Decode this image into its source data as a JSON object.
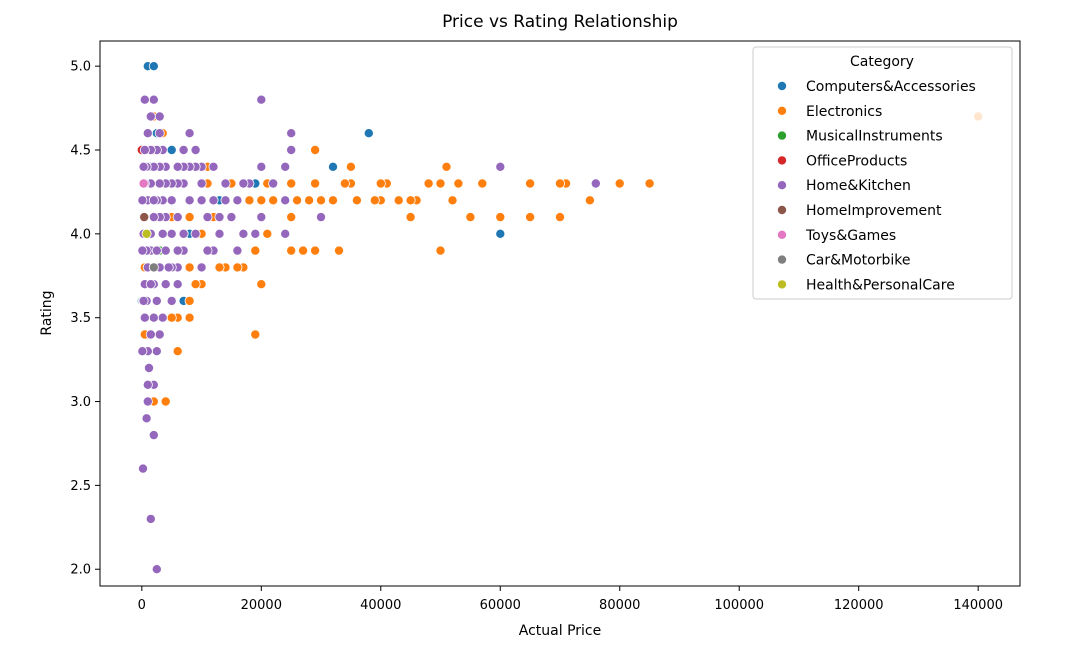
{
  "chart_data": {
    "type": "scatter",
    "title": "Price vs Rating Relationship",
    "xlabel": "Actual Price",
    "ylabel": "Rating",
    "xlim": [
      -7000,
      147000
    ],
    "ylim": [
      1.9,
      5.15
    ],
    "xticks": [
      0,
      20000,
      40000,
      60000,
      80000,
      100000,
      120000,
      140000
    ],
    "yticks": [
      2.0,
      2.5,
      3.0,
      3.5,
      4.0,
      4.5,
      5.0
    ],
    "xtick_labels": [
      "0",
      "20000",
      "40000",
      "60000",
      "80000",
      "100000",
      "120000",
      "140000"
    ],
    "ytick_labels": [
      "2.0",
      "2.5",
      "3.0",
      "3.5",
      "4.0",
      "4.5",
      "5.0"
    ],
    "legend": {
      "title": "Category",
      "position": "top-right",
      "entries": [
        {
          "name": "Computers&Accessories",
          "color": "#1f77b4"
        },
        {
          "name": "Electronics",
          "color": "#ff7f0e"
        },
        {
          "name": "MusicalInstruments",
          "color": "#2ca02c"
        },
        {
          "name": "OfficeProducts",
          "color": "#d62728"
        },
        {
          "name": "Home&Kitchen",
          "color": "#9467bd"
        },
        {
          "name": "HomeImprovement",
          "color": "#8c564b"
        },
        {
          "name": "Toys&Games",
          "color": "#e377c2"
        },
        {
          "name": "Car&Motorbike",
          "color": "#7f7f7f"
        },
        {
          "name": "Health&PersonalCare",
          "color": "#bcbd22"
        }
      ]
    },
    "series": [
      {
        "name": "Computers&Accessories",
        "points": [
          [
            1000,
            5.0
          ],
          [
            2000,
            5.0
          ],
          [
            38000,
            4.6
          ],
          [
            32000,
            4.4
          ],
          [
            60000,
            4.0
          ],
          [
            19000,
            4.3
          ],
          [
            5000,
            4.5
          ],
          [
            6000,
            4.4
          ],
          [
            7000,
            3.6
          ],
          [
            13000,
            4.2
          ],
          [
            3000,
            4.1
          ],
          [
            500,
            3.8
          ],
          [
            0,
            3.6
          ],
          [
            2500,
            4.6
          ],
          [
            1500,
            4.4
          ],
          [
            4000,
            3.9
          ],
          [
            8000,
            4.0
          ],
          [
            300,
            4.2
          ],
          [
            700,
            4.3
          ],
          [
            1200,
            4.0
          ]
        ]
      },
      {
        "name": "Electronics",
        "points": [
          [
            140000,
            4.7
          ],
          [
            85000,
            4.3
          ],
          [
            80000,
            4.3
          ],
          [
            76000,
            4.3
          ],
          [
            75000,
            4.2
          ],
          [
            71000,
            4.3
          ],
          [
            70000,
            4.3
          ],
          [
            70000,
            4.1
          ],
          [
            65000,
            4.3
          ],
          [
            65000,
            4.1
          ],
          [
            60000,
            4.1
          ],
          [
            60000,
            4.4
          ],
          [
            57000,
            4.3
          ],
          [
            55000,
            4.1
          ],
          [
            53000,
            4.3
          ],
          [
            52000,
            4.2
          ],
          [
            51000,
            4.4
          ],
          [
            50000,
            3.9
          ],
          [
            50000,
            4.3
          ],
          [
            48000,
            4.3
          ],
          [
            46000,
            4.2
          ],
          [
            45000,
            4.2
          ],
          [
            45000,
            4.1
          ],
          [
            43000,
            4.2
          ],
          [
            41000,
            4.3
          ],
          [
            40000,
            4.3
          ],
          [
            40000,
            4.2
          ],
          [
            39000,
            4.2
          ],
          [
            36000,
            4.2
          ],
          [
            35000,
            4.4
          ],
          [
            35000,
            4.3
          ],
          [
            34000,
            4.3
          ],
          [
            33000,
            3.9
          ],
          [
            32000,
            4.2
          ],
          [
            30000,
            4.2
          ],
          [
            29000,
            4.3
          ],
          [
            29000,
            4.5
          ],
          [
            29000,
            3.9
          ],
          [
            28000,
            4.2
          ],
          [
            27000,
            3.9
          ],
          [
            26000,
            4.2
          ],
          [
            25000,
            4.1
          ],
          [
            25000,
            4.3
          ],
          [
            25000,
            3.9
          ],
          [
            22000,
            4.2
          ],
          [
            21000,
            4.0
          ],
          [
            21000,
            4.3
          ],
          [
            20000,
            3.7
          ],
          [
            20000,
            4.2
          ],
          [
            20000,
            4.1
          ],
          [
            19000,
            3.4
          ],
          [
            19000,
            3.9
          ],
          [
            18000,
            4.2
          ],
          [
            17000,
            3.8
          ],
          [
            16000,
            3.8
          ],
          [
            15000,
            4.3
          ],
          [
            15000,
            4.1
          ],
          [
            14000,
            3.8
          ],
          [
            13000,
            3.8
          ],
          [
            13000,
            4.1
          ],
          [
            12000,
            4.1
          ],
          [
            11000,
            4.3
          ],
          [
            10000,
            4.0
          ],
          [
            10000,
            3.7
          ],
          [
            9000,
            3.7
          ],
          [
            8000,
            4.1
          ],
          [
            8000,
            3.8
          ],
          [
            8000,
            3.5
          ],
          [
            8000,
            3.6
          ],
          [
            7000,
            4.0
          ],
          [
            6000,
            3.5
          ],
          [
            6000,
            3.3
          ],
          [
            5000,
            3.5
          ],
          [
            4000,
            3.0
          ],
          [
            3500,
            4.6
          ],
          [
            2000,
            3.0
          ],
          [
            2000,
            4.7
          ],
          [
            1500,
            3.1
          ],
          [
            1000,
            3.4
          ],
          [
            500,
            3.4
          ],
          [
            500,
            3.8
          ],
          [
            300,
            4.1
          ],
          [
            200,
            3.6
          ],
          [
            5000,
            4.1
          ],
          [
            3000,
            4.3
          ],
          [
            2000,
            4.5
          ],
          [
            11000,
            4.4
          ]
        ]
      },
      {
        "name": "MusicalInstruments",
        "points": [
          [
            1500,
            4.0
          ],
          [
            3000,
            3.9
          ]
        ]
      },
      {
        "name": "OfficeProducts",
        "points": [
          [
            0,
            4.5
          ],
          [
            300,
            4.3
          ],
          [
            600,
            4.1
          ]
        ]
      },
      {
        "name": "Home&Kitchen",
        "points": [
          [
            20000,
            4.8
          ],
          [
            60000,
            4.4
          ],
          [
            76000,
            4.3
          ],
          [
            25000,
            4.6
          ],
          [
            25000,
            4.5
          ],
          [
            24000,
            4.4
          ],
          [
            24000,
            4.0
          ],
          [
            30000,
            4.1
          ],
          [
            24000,
            4.2
          ],
          [
            20000,
            4.4
          ],
          [
            20000,
            4.1
          ],
          [
            18000,
            4.3
          ],
          [
            17000,
            4.3
          ],
          [
            16000,
            4.2
          ],
          [
            15000,
            4.1
          ],
          [
            16000,
            3.9
          ],
          [
            17000,
            4.0
          ],
          [
            14000,
            4.3
          ],
          [
            14000,
            4.2
          ],
          [
            13000,
            4.0
          ],
          [
            12000,
            4.4
          ],
          [
            12000,
            3.9
          ],
          [
            11000,
            4.1
          ],
          [
            11000,
            3.9
          ],
          [
            10000,
            4.4
          ],
          [
            10000,
            4.3
          ],
          [
            10000,
            4.2
          ],
          [
            10000,
            3.8
          ],
          [
            9000,
            4.5
          ],
          [
            9000,
            4.4
          ],
          [
            9000,
            4.0
          ],
          [
            8000,
            4.6
          ],
          [
            8000,
            4.4
          ],
          [
            8000,
            4.2
          ],
          [
            7000,
            4.5
          ],
          [
            7000,
            4.4
          ],
          [
            7000,
            4.3
          ],
          [
            7000,
            4.0
          ],
          [
            7000,
            3.9
          ],
          [
            6000,
            4.4
          ],
          [
            6000,
            4.3
          ],
          [
            6000,
            4.1
          ],
          [
            6000,
            3.8
          ],
          [
            6000,
            3.7
          ],
          [
            5000,
            4.3
          ],
          [
            5000,
            4.2
          ],
          [
            5000,
            4.0
          ],
          [
            5000,
            3.8
          ],
          [
            5000,
            3.6
          ],
          [
            4000,
            4.4
          ],
          [
            4000,
            4.3
          ],
          [
            4000,
            4.1
          ],
          [
            4000,
            3.9
          ],
          [
            4000,
            3.7
          ],
          [
            3500,
            4.5
          ],
          [
            3500,
            4.2
          ],
          [
            3500,
            3.5
          ],
          [
            3000,
            4.7
          ],
          [
            3000,
            4.6
          ],
          [
            3000,
            4.4
          ],
          [
            3000,
            4.3
          ],
          [
            3000,
            4.1
          ],
          [
            3000,
            3.8
          ],
          [
            3000,
            3.4
          ],
          [
            2500,
            4.5
          ],
          [
            2500,
            4.2
          ],
          [
            2500,
            3.6
          ],
          [
            2500,
            3.3
          ],
          [
            2000,
            4.8
          ],
          [
            2000,
            4.4
          ],
          [
            2000,
            4.1
          ],
          [
            2000,
            3.7
          ],
          [
            2000,
            3.5
          ],
          [
            2000,
            3.1
          ],
          [
            2000,
            2.8
          ],
          [
            2500,
            2.0
          ],
          [
            1500,
            4.7
          ],
          [
            1500,
            4.5
          ],
          [
            1500,
            4.3
          ],
          [
            1500,
            4.0
          ],
          [
            1500,
            3.9
          ],
          [
            1500,
            3.4
          ],
          [
            1500,
            2.3
          ],
          [
            1000,
            4.6
          ],
          [
            1000,
            4.2
          ],
          [
            1000,
            3.8
          ],
          [
            1000,
            3.3
          ],
          [
            1000,
            3.1
          ],
          [
            1200,
            3.2
          ],
          [
            1000,
            3.0
          ],
          [
            800,
            4.4
          ],
          [
            800,
            3.9
          ],
          [
            800,
            3.6
          ],
          [
            800,
            2.9
          ],
          [
            500,
            4.8
          ],
          [
            500,
            4.5
          ],
          [
            500,
            4.3
          ],
          [
            500,
            4.1
          ],
          [
            500,
            3.7
          ],
          [
            500,
            3.5
          ],
          [
            300,
            4.4
          ],
          [
            300,
            4.0
          ],
          [
            300,
            3.6
          ],
          [
            200,
            2.6
          ],
          [
            100,
            4.2
          ],
          [
            100,
            3.9
          ],
          [
            100,
            3.3
          ],
          [
            12000,
            4.2
          ],
          [
            13000,
            4.1
          ],
          [
            19000,
            4.0
          ],
          [
            22000,
            4.3
          ],
          [
            6000,
            3.9
          ],
          [
            4500,
            3.8
          ],
          [
            3500,
            4.0
          ],
          [
            2500,
            3.9
          ],
          [
            1500,
            3.7
          ],
          [
            2000,
            4.2
          ]
        ]
      },
      {
        "name": "HomeImprovement",
        "points": [
          [
            400,
            4.1
          ]
        ]
      },
      {
        "name": "Toys&Games",
        "points": [
          [
            300,
            4.3
          ]
        ]
      },
      {
        "name": "Car&Motorbike",
        "points": [
          [
            2000,
            3.8
          ]
        ]
      },
      {
        "name": "Health&PersonalCare",
        "points": [
          [
            800,
            4.0
          ]
        ]
      }
    ]
  }
}
